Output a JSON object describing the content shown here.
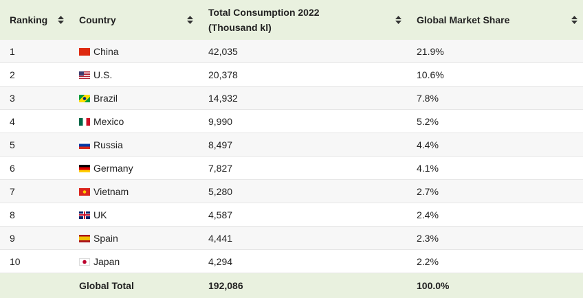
{
  "table": {
    "header": [
      "Ranking",
      "Country",
      "Total Consumption 2022 (Thousand kl)",
      "Global Market Share"
    ],
    "rows": [
      [
        1,
        "China",
        "42,035",
        "21.9%"
      ],
      [
        2,
        "U.S.",
        "20,378",
        "10.6%"
      ],
      [
        3,
        "Brazil",
        "14,932",
        "7.8%"
      ],
      [
        4,
        "Mexico",
        "9,990",
        "5.2%"
      ],
      [
        5,
        "Russia",
        "8,497",
        "4.4%"
      ],
      [
        6,
        "Germany",
        "7,827",
        "4.1%"
      ],
      [
        7,
        "Vietnam",
        "5,280",
        "2.7%"
      ],
      [
        8,
        "UK",
        "4,587",
        "2.4%"
      ],
      [
        9,
        "Spain",
        "4,441",
        "2.3%"
      ],
      [
        10,
        "Japan",
        "4,294",
        "2.2%"
      ]
    ],
    "footer": {
      "label": "Global Total",
      "total": "192,086",
      "share": "100.0%"
    }
  }
}
